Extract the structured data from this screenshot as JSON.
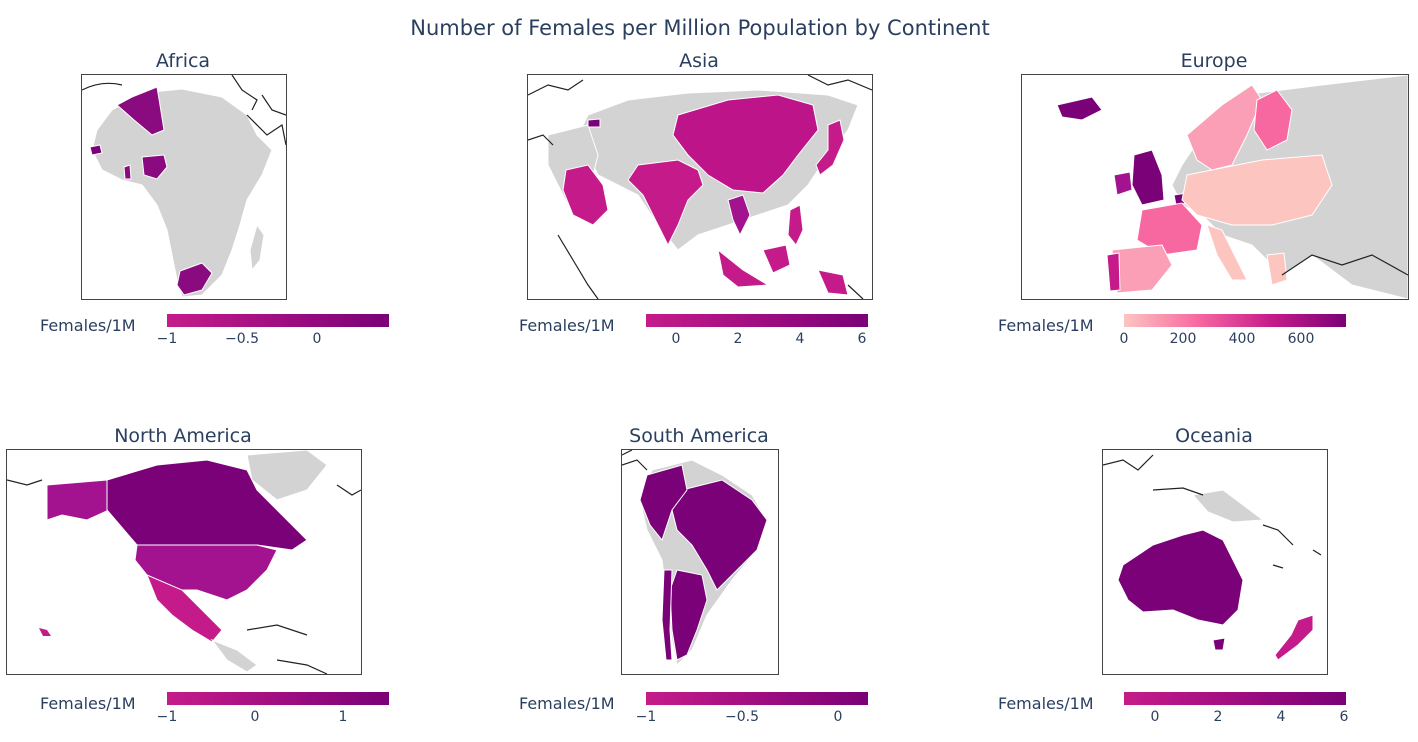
{
  "title": "Number of Females per Million Population by Continent",
  "colors": {
    "no_data": "#d3d3d3",
    "low": "#c51b8a",
    "mid": "#a3138f",
    "high": "#7a0177",
    "europe_low": "#fcc5c0",
    "europe_mid": "#fa9fb5",
    "europe_high": "#f768a1"
  },
  "panels": [
    {
      "id": "africa",
      "title": "Africa",
      "colorbar_label": "Females/1M",
      "ticks": [
        "−1",
        "−0.5",
        "0"
      ],
      "tick_values": [
        -1,
        -0.5,
        0
      ],
      "range": [
        -1.1,
        0.5
      ]
    },
    {
      "id": "asia",
      "title": "Asia",
      "colorbar_label": "Females/1M",
      "ticks": [
        "0",
        "2",
        "4",
        "6"
      ],
      "tick_values": [
        0,
        2,
        4,
        6
      ],
      "range": [
        -1,
        6
      ]
    },
    {
      "id": "europe",
      "title": "Europe",
      "colorbar_label": "Females/1M",
      "ticks": [
        "0",
        "200",
        "400",
        "600"
      ],
      "tick_values": [
        0,
        200,
        400,
        600
      ],
      "range": [
        0,
        750
      ]
    },
    {
      "id": "north_america",
      "title": "North America",
      "colorbar_label": "Females/1M",
      "ticks": [
        "−1",
        "0",
        "1"
      ],
      "tick_values": [
        -1,
        0,
        1
      ],
      "range": [
        -1.1,
        1.5
      ]
    },
    {
      "id": "south_america",
      "title": "South America",
      "colorbar_label": "Females/1M",
      "ticks": [
        "−1",
        "−0.5",
        "0"
      ],
      "tick_values": [
        -1,
        -0.5,
        0
      ],
      "range": [
        -1,
        0
      ]
    },
    {
      "id": "oceania",
      "title": "Oceania",
      "colorbar_label": "Females/1M",
      "ticks": [
        "0",
        "2",
        "4",
        "6"
      ],
      "tick_values": [
        0,
        2,
        4,
        6
      ],
      "range": [
        -1,
        6
      ]
    }
  ]
}
